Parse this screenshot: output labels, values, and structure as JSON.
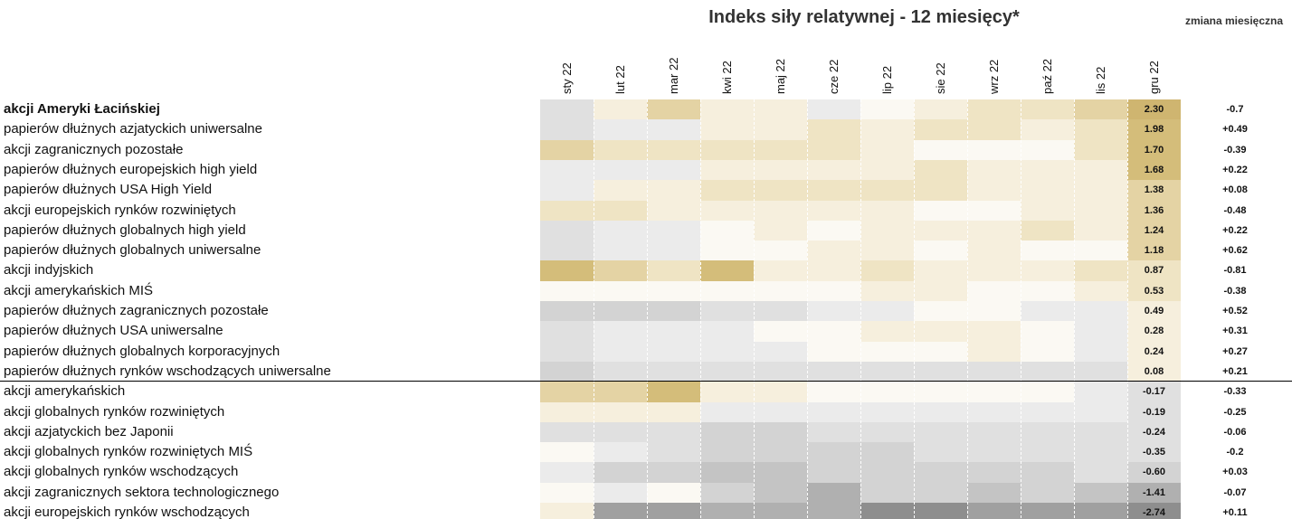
{
  "title": "Indeks siły relatywnej - 12 miesięcy*",
  "change_header": "zmiana miesięczna",
  "months": [
    "sty 22",
    "lut 22",
    "mar 22",
    "kwi 22",
    "maj 22",
    "cze 22",
    "lip 22",
    "sie 22",
    "wrz 22",
    "paź 22",
    "lis 22",
    "gru 22"
  ],
  "rows": [
    {
      "label": "akcji Ameryki Łacińskiej",
      "value": "2.30",
      "change": "-0.7",
      "colors": [
        "#e0e0e0",
        "#f6efdd",
        "#e4d3a4",
        "#f6efdd",
        "#f6efdd",
        "#ebebeb",
        "#fbf9f3",
        "#f6efdd",
        "#efe4c4",
        "#efe4c4",
        "#e4d3a4",
        "#cfb570"
      ]
    },
    {
      "label": "papierów dłużnych azjatyckich uniwersalne",
      "value": "1.98",
      "change": "+0.49",
      "colors": [
        "#e0e0e0",
        "#ebebeb",
        "#ebebeb",
        "#f6efdd",
        "#f6efdd",
        "#efe4c4",
        "#f6efdd",
        "#efe4c4",
        "#efe4c4",
        "#f6efdd",
        "#efe4c4",
        "#d4bd7a"
      ]
    },
    {
      "label": "akcji zagranicznych pozostałe",
      "value": "1.70",
      "change": "-0.39",
      "colors": [
        "#e4d3a4",
        "#efe4c4",
        "#efe4c4",
        "#efe4c4",
        "#efe4c4",
        "#efe4c4",
        "#f6efdd",
        "#fbf9f3",
        "#fbf9f3",
        "#fbf9f3",
        "#efe4c4",
        "#d4bd7a"
      ]
    },
    {
      "label": "papierów dłużnych europejskich high yield",
      "value": "1.68",
      "change": "+0.22",
      "colors": [
        "#ebebeb",
        "#ebebeb",
        "#ebebeb",
        "#f6efdd",
        "#f6efdd",
        "#f6efdd",
        "#f6efdd",
        "#efe4c4",
        "#f6efdd",
        "#f6efdd",
        "#f6efdd",
        "#d4bd7a"
      ]
    },
    {
      "label": "papierów dłużnych USA High Yield",
      "value": "1.38",
      "change": "+0.08",
      "colors": [
        "#ebebeb",
        "#f6efdd",
        "#f6efdd",
        "#efe4c4",
        "#efe4c4",
        "#efe4c4",
        "#efe4c4",
        "#efe4c4",
        "#f6efdd",
        "#f6efdd",
        "#f6efdd",
        "#e4d3a4"
      ]
    },
    {
      "label": "akcji europejskich rynków rozwiniętych",
      "value": "1.36",
      "change": "-0.48",
      "colors": [
        "#efe4c4",
        "#efe4c4",
        "#f6efdd",
        "#f6efdd",
        "#f6efdd",
        "#f6efdd",
        "#f6efdd",
        "#fbf9f3",
        "#fbf9f3",
        "#f6efdd",
        "#f6efdd",
        "#e4d3a4"
      ]
    },
    {
      "label": "papierów dłużnych globalnych high yield",
      "value": "1.24",
      "change": "+0.22",
      "colors": [
        "#e0e0e0",
        "#ebebeb",
        "#ebebeb",
        "#fbf9f3",
        "#f6efdd",
        "#fbf9f3",
        "#f6efdd",
        "#f6efdd",
        "#f6efdd",
        "#efe4c4",
        "#f6efdd",
        "#e4d3a4"
      ]
    },
    {
      "label": "papierów dłużnych globalnych uniwersalne",
      "value": "1.18",
      "change": "+0.62",
      "colors": [
        "#e0e0e0",
        "#ebebeb",
        "#ebebeb",
        "#fbf9f3",
        "#fbf9f3",
        "#f6efdd",
        "#f6efdd",
        "#fbf9f3",
        "#f6efdd",
        "#fbf9f3",
        "#fbf9f3",
        "#e4d3a4"
      ]
    },
    {
      "label": "akcji indyjskich",
      "value": "0.87",
      "change": "-0.81",
      "colors": [
        "#d4bd7a",
        "#e4d3a4",
        "#efe4c4",
        "#d4bd7a",
        "#f6efdd",
        "#f6efdd",
        "#efe4c4",
        "#f6efdd",
        "#f6efdd",
        "#f6efdd",
        "#efe4c4",
        "#efe4c4"
      ]
    },
    {
      "label": "akcji amerykańskich MIŚ",
      "value": "0.53",
      "change": "-0.38",
      "colors": [
        "#fbf9f3",
        "#fbf9f3",
        "#fbf9f3",
        "#fbf9f3",
        "#fbf9f3",
        "#fbf9f3",
        "#f6efdd",
        "#f6efdd",
        "#fbf9f3",
        "#fbf9f3",
        "#f6efdd",
        "#efe4c4"
      ]
    },
    {
      "label": "papierów dłużnych zagranicznych pozostałe",
      "value": "0.49",
      "change": "+0.52",
      "colors": [
        "#d3d3d3",
        "#d3d3d3",
        "#d3d3d3",
        "#e0e0e0",
        "#e0e0e0",
        "#ebebeb",
        "#ebebeb",
        "#fbf9f3",
        "#fbf9f3",
        "#ebebeb",
        "#ebebeb",
        "#f6efdd"
      ]
    },
    {
      "label": "papierów dłużnych USA uniwersalne",
      "value": "0.28",
      "change": "+0.31",
      "colors": [
        "#e0e0e0",
        "#ebebeb",
        "#ebebeb",
        "#ebebeb",
        "#fbf9f3",
        "#fbf9f3",
        "#f6efdd",
        "#f6efdd",
        "#f6efdd",
        "#fbf9f3",
        "#ebebeb",
        "#f6efdd"
      ]
    },
    {
      "label": "papierów dłużnych globalnych korporacyjnych",
      "value": "0.24",
      "change": "+0.27",
      "colors": [
        "#e0e0e0",
        "#ebebeb",
        "#ebebeb",
        "#ebebeb",
        "#ebebeb",
        "#fbf9f3",
        "#fbf9f3",
        "#fbf9f3",
        "#f6efdd",
        "#fbf9f3",
        "#ebebeb",
        "#f6efdd"
      ]
    },
    {
      "label": "papierów dłużnych rynków wschodzących uniwersalne",
      "value": "0.08",
      "change": "+0.21",
      "colors": [
        "#d3d3d3",
        "#e0e0e0",
        "#e0e0e0",
        "#e0e0e0",
        "#e0e0e0",
        "#e0e0e0",
        "#e0e0e0",
        "#e0e0e0",
        "#e0e0e0",
        "#e0e0e0",
        "#e0e0e0",
        "#f6efdd"
      ]
    },
    {
      "label": "akcji amerykańskich",
      "value": "-0.17",
      "change": "-0.33",
      "colors": [
        "#e4d3a4",
        "#e4d3a4",
        "#d4bd7a",
        "#f6efdd",
        "#f6efdd",
        "#fbf9f3",
        "#fbf9f3",
        "#fbf9f3",
        "#fbf9f3",
        "#fbf9f3",
        "#ebebeb",
        "#e0e0e0"
      ]
    },
    {
      "label": "akcji globalnych rynków rozwiniętych",
      "value": "-0.19",
      "change": "-0.25",
      "colors": [
        "#f6efdd",
        "#f6efdd",
        "#f6efdd",
        "#ebebeb",
        "#ebebeb",
        "#ebebeb",
        "#ebebeb",
        "#ebebeb",
        "#ebebeb",
        "#ebebeb",
        "#ebebeb",
        "#e0e0e0"
      ]
    },
    {
      "label": "akcji azjatyckich bez Japonii",
      "value": "-0.24",
      "change": "-0.06",
      "colors": [
        "#e0e0e0",
        "#e0e0e0",
        "#e0e0e0",
        "#d3d3d3",
        "#d3d3d3",
        "#e0e0e0",
        "#e0e0e0",
        "#e0e0e0",
        "#e0e0e0",
        "#e0e0e0",
        "#e0e0e0",
        "#e0e0e0"
      ]
    },
    {
      "label": "akcji globalnych rynków rozwiniętych MIŚ",
      "value": "-0.35",
      "change": "-0.2",
      "colors": [
        "#fbf9f3",
        "#ebebeb",
        "#e0e0e0",
        "#d3d3d3",
        "#d3d3d3",
        "#d3d3d3",
        "#d3d3d3",
        "#e0e0e0",
        "#e0e0e0",
        "#e0e0e0",
        "#e0e0e0",
        "#e0e0e0"
      ]
    },
    {
      "label": "akcji globalnych rynków wschodzących",
      "value": "-0.60",
      "change": "+0.03",
      "colors": [
        "#ebebeb",
        "#d3d3d3",
        "#d3d3d3",
        "#c4c4c4",
        "#c4c4c4",
        "#d3d3d3",
        "#d3d3d3",
        "#d3d3d3",
        "#d3d3d3",
        "#d3d3d3",
        "#e0e0e0",
        "#d3d3d3"
      ]
    },
    {
      "label": "akcji zagranicznych sektora technologicznego",
      "value": "-1.41",
      "change": "-0.07",
      "colors": [
        "#fbf9f3",
        "#ebebeb",
        "#fbf9f3",
        "#d3d3d3",
        "#c4c4c4",
        "#b0b0b0",
        "#d3d3d3",
        "#d3d3d3",
        "#c4c4c4",
        "#d3d3d3",
        "#c4c4c4",
        "#b0b0b0"
      ]
    },
    {
      "label": "akcji europejskich rynków wschodzących",
      "value": "-2.74",
      "change": "+0.11",
      "colors": [
        "#f6efdd",
        "#a0a0a0",
        "#a0a0a0",
        "#b0b0b0",
        "#b0b0b0",
        "#b0b0b0",
        "#8e8e8e",
        "#8e8e8e",
        "#a0a0a0",
        "#a0a0a0",
        "#a0a0a0",
        "#8e8e8e"
      ]
    }
  ]
}
